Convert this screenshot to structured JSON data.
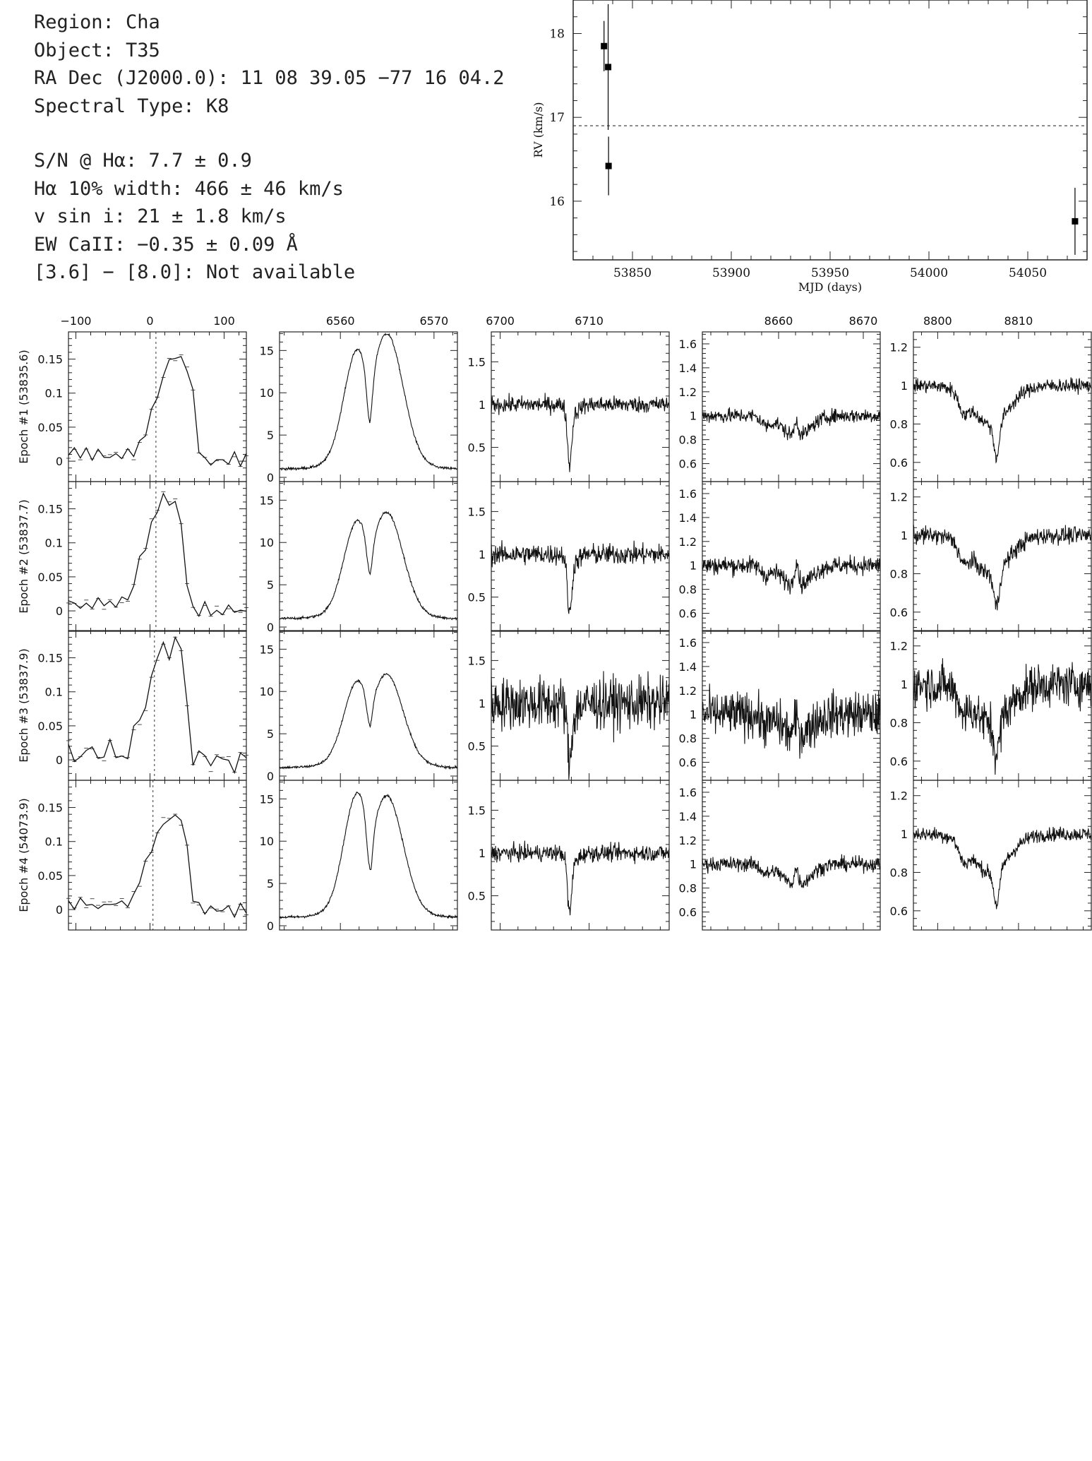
{
  "info": {
    "lines": [
      "Region: Cha",
      "Object: T35",
      "RA Dec (J2000.0): 11 08 39.05 −77 16 04.2",
      "Spectral Type: K8",
      "S/N @ Hα: 7.7 ± 0.9",
      "Hα 10% width: 466 ± 46 km/s",
      "v sin i: 21 ± 1.8 km/s",
      "EW CaII: −0.35 ± 0.09 Å",
      "[3.6] − [8.0]: Not available"
    ]
  },
  "chart_data": [
    {
      "type": "scatter",
      "id": "rv",
      "xlabel": "MJD (days)",
      "ylabel": "RV (km/s)",
      "xlim": [
        53820,
        54080
      ],
      "ylim": [
        15.3,
        18.4
      ],
      "xticks": [
        53850,
        53900,
        53950,
        54000,
        54050
      ],
      "yticks": [
        16,
        17,
        18
      ],
      "reference_line": 16.9,
      "points": [
        {
          "x": 53835.6,
          "y": 17.85,
          "err": 0.3
        },
        {
          "x": 53837.7,
          "y": 17.6,
          "err": 0.75
        },
        {
          "x": 53837.9,
          "y": 16.42,
          "err": 0.35
        },
        {
          "x": 54073.9,
          "y": 15.76,
          "err": 0.4
        }
      ]
    },
    {
      "type": "line",
      "id": "spectra-grid",
      "row_labels": [
        "Epoch #1 (53835.6)",
        "Epoch #2 (53837.7)",
        "Epoch #3 (53837.9)",
        "Epoch #4 (54073.9)"
      ],
      "columns": [
        {
          "name": "ccf",
          "xlim": [
            -110,
            130
          ],
          "xticks": [
            -100,
            0,
            100
          ],
          "xtick_labels": [
            "−100",
            "0",
            "100"
          ],
          "ylim": [
            -0.03,
            0.19
          ],
          "yticks": [
            0,
            0.05,
            0.1,
            0.15
          ],
          "ytick_labels": [
            "0",
            "0.05",
            "0.1",
            "0.15"
          ],
          "dashed_x": [
            8,
            8,
            6,
            4
          ]
        },
        {
          "name": "halpha",
          "xlim": [
            6553.5,
            6572.5
          ],
          "xticks": [
            6560,
            6570
          ],
          "xtick_labels": [
            "6560",
            "6570"
          ],
          "ylim": [
            -0.5,
            17.2
          ],
          "yticks": [
            0,
            5,
            10,
            15
          ],
          "ytick_labels": [
            "0",
            "5",
            "10",
            "15"
          ]
        },
        {
          "name": "lithium",
          "xlim": [
            6699,
            6719
          ],
          "xticks": [
            6700,
            6710
          ],
          "xtick_labels": [
            "6700",
            "6710"
          ],
          "ylim": [
            0.1,
            1.85
          ],
          "yticks": [
            0.5,
            1,
            1.5
          ],
          "ytick_labels": [
            "0.5",
            "1",
            "1.5"
          ]
        },
        {
          "name": "ca8662",
          "xlim": [
            8651,
            8672
          ],
          "xticks": [
            8660,
            8670
          ],
          "xtick_labels": [
            "8660",
            "8670"
          ],
          "ylim": [
            0.45,
            1.7
          ],
          "yticks": [
            0.6,
            0.8,
            1,
            1.2,
            1.4,
            1.6
          ],
          "ytick_labels": [
            "0.6",
            "0.8",
            "1",
            "1.2",
            "1.4",
            "1.6"
          ]
        },
        {
          "name": "ca8820",
          "xlim": [
            8797,
            8819
          ],
          "xticks": [
            8800,
            8810
          ],
          "xtick_labels": [
            "8800",
            "8810"
          ],
          "ylim": [
            0.5,
            1.28
          ],
          "yticks": [
            0.6,
            0.8,
            1,
            1.2
          ],
          "ytick_labels": [
            "0.6",
            "0.8",
            "1",
            "1.2"
          ]
        }
      ],
      "ccf_peaks": [
        {
          "center": 28,
          "amp": 0.155
        },
        {
          "center": 14,
          "amp": 0.17
        },
        {
          "center": 18,
          "amp": 0.17
        },
        {
          "center": 20,
          "amp": 0.14
        }
      ],
      "halpha_peaks": [
        {
          "blue_amp": 13.8,
          "red_amp": 15.8,
          "dip": 4.5
        },
        {
          "blue_amp": 11.0,
          "red_amp": 12.0,
          "dip": 3.0
        },
        {
          "blue_amp": 9.5,
          "red_amp": 10.3,
          "dip": 2.5
        },
        {
          "blue_amp": 14.5,
          "red_amp": 14.0,
          "dip": 4.5
        }
      ],
      "noise_levels": [
        0.08,
        0.1,
        0.25,
        0.08
      ],
      "colors": {
        "line": "#111111",
        "axis": "#222222",
        "dashed": "#333333"
      }
    }
  ]
}
